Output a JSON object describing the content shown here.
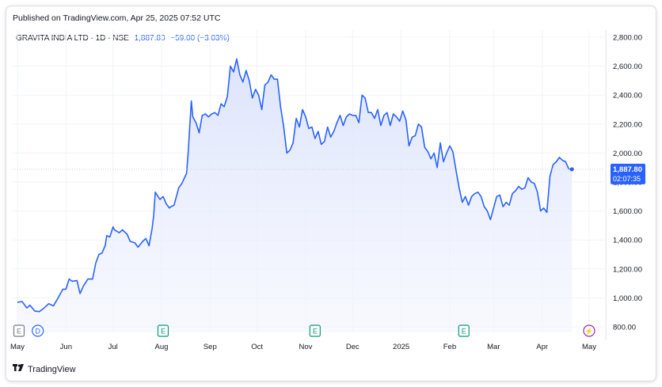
{
  "header": {
    "published": "Published on TradingView.com, Apr 25, 2025 07:52 UTC",
    "symbol": "GRAVITA INDIA LTD · 1D · NSE",
    "last_price": "1,887.80",
    "change": "−59.00 (−3.03%)"
  },
  "last_price_label": {
    "price": "1,887.80",
    "countdown": "02:07:35"
  },
  "footer": {
    "brand": "TradingView",
    "logo_icon": "tradingview-logo-icon"
  },
  "colors": {
    "line": "#2962ff",
    "area_top": "#dfe6fd",
    "label_bg": "#2962ff",
    "grid": "#f0f3fa"
  },
  "event_markers": [
    {
      "letter": "E",
      "icon": "earnings-icon",
      "date": "2024-05-02",
      "color": "#787b86"
    },
    {
      "letter": "D",
      "icon": "dividend-icon",
      "date": "2024-05-14",
      "color": "#2962ff"
    },
    {
      "letter": "E",
      "icon": "earnings-icon",
      "date": "2024-08-02",
      "color": "#089981"
    },
    {
      "letter": "E",
      "icon": "earnings-icon",
      "date": "2024-11-07",
      "color": "#089981"
    },
    {
      "letter": "E",
      "icon": "earnings-icon",
      "date": "2025-02-10",
      "color": "#089981"
    },
    {
      "letter": "⚡",
      "icon": "lightning-icon",
      "date": "2025-05-01",
      "color": "#9c27b0"
    }
  ],
  "chart_data": {
    "type": "area",
    "x_axis": {
      "ticks": [
        "May",
        "Jun",
        "Jul",
        "Aug",
        "Sep",
        "Oct",
        "Nov",
        "Dec",
        "2025",
        "Feb",
        "Mar",
        "Apr",
        "May"
      ],
      "tick_dates": [
        "2024-05-01",
        "2024-06-01",
        "2024-07-01",
        "2024-08-01",
        "2024-09-01",
        "2024-10-01",
        "2024-11-01",
        "2024-12-01",
        "2025-01-01",
        "2025-02-01",
        "2025-03-01",
        "2025-04-01",
        "2025-05-01"
      ]
    },
    "y_axis": {
      "ticks": [
        "800.00",
        "1,000.00",
        "1,200.00",
        "1,400.00",
        "1,600.00",
        "1,800.00",
        "2,000.00",
        "2,200.00",
        "2,400.00",
        "2,600.00",
        "2,800.00"
      ],
      "range": [
        720,
        2900
      ]
    },
    "series": [
      {
        "points": [
          [
            "2024-05-01",
            970
          ],
          [
            "2024-05-04",
            975
          ],
          [
            "2024-05-07",
            930
          ],
          [
            "2024-05-09",
            950
          ],
          [
            "2024-05-12",
            910
          ],
          [
            "2024-05-15",
            905
          ],
          [
            "2024-05-18",
            930
          ],
          [
            "2024-05-21",
            960
          ],
          [
            "2024-05-24",
            945
          ],
          [
            "2024-05-27",
            1000
          ],
          [
            "2024-05-30",
            1060
          ],
          [
            "2024-06-01",
            1060
          ],
          [
            "2024-06-03",
            1130
          ],
          [
            "2024-06-05",
            1115
          ],
          [
            "2024-06-08",
            1120
          ],
          [
            "2024-06-10",
            1030
          ],
          [
            "2024-06-12",
            1080
          ],
          [
            "2024-06-15",
            1130
          ],
          [
            "2024-06-18",
            1130
          ],
          [
            "2024-06-20",
            1240
          ],
          [
            "2024-06-22",
            1300
          ],
          [
            "2024-06-24",
            1310
          ],
          [
            "2024-06-26",
            1360
          ],
          [
            "2024-06-27",
            1430
          ],
          [
            "2024-06-29",
            1420
          ],
          [
            "2024-07-01",
            1490
          ],
          [
            "2024-07-02",
            1470
          ],
          [
            "2024-07-05",
            1450
          ],
          [
            "2024-07-07",
            1470
          ],
          [
            "2024-07-10",
            1440
          ],
          [
            "2024-07-12",
            1390
          ],
          [
            "2024-07-15",
            1380
          ],
          [
            "2024-07-17",
            1350
          ],
          [
            "2024-07-20",
            1390
          ],
          [
            "2024-07-22",
            1410
          ],
          [
            "2024-07-24",
            1360
          ],
          [
            "2024-07-26",
            1480
          ],
          [
            "2024-07-27",
            1570
          ],
          [
            "2024-07-28",
            1730
          ],
          [
            "2024-07-31",
            1680
          ],
          [
            "2024-08-02",
            1700
          ],
          [
            "2024-08-04",
            1650
          ],
          [
            "2024-08-06",
            1620
          ],
          [
            "2024-08-07",
            1630
          ],
          [
            "2024-08-09",
            1640
          ],
          [
            "2024-08-12",
            1760
          ],
          [
            "2024-08-14",
            1790
          ],
          [
            "2024-08-17",
            1860
          ],
          [
            "2024-08-18",
            2000
          ],
          [
            "2024-08-20",
            2360
          ],
          [
            "2024-08-21",
            2250
          ],
          [
            "2024-08-23",
            2210
          ],
          [
            "2024-08-25",
            2140
          ],
          [
            "2024-08-27",
            2260
          ],
          [
            "2024-08-29",
            2270
          ],
          [
            "2024-08-31",
            2250
          ],
          [
            "2024-09-02",
            2270
          ],
          [
            "2024-09-04",
            2280
          ],
          [
            "2024-09-06",
            2260
          ],
          [
            "2024-09-08",
            2340
          ],
          [
            "2024-09-10",
            2320
          ],
          [
            "2024-09-12",
            2390
          ],
          [
            "2024-09-14",
            2600
          ],
          [
            "2024-09-16",
            2560
          ],
          [
            "2024-09-18",
            2650
          ],
          [
            "2024-09-20",
            2540
          ],
          [
            "2024-09-22",
            2490
          ],
          [
            "2024-09-24",
            2570
          ],
          [
            "2024-09-26",
            2500
          ],
          [
            "2024-09-28",
            2380
          ],
          [
            "2024-09-30",
            2440
          ],
          [
            "2024-10-02",
            2400
          ],
          [
            "2024-10-04",
            2300
          ],
          [
            "2024-10-06",
            2470
          ],
          [
            "2024-10-08",
            2490
          ],
          [
            "2024-10-10",
            2540
          ],
          [
            "2024-10-12",
            2510
          ],
          [
            "2024-10-14",
            2510
          ],
          [
            "2024-10-16",
            2320
          ],
          [
            "2024-10-18",
            2180
          ],
          [
            "2024-10-20",
            2000
          ],
          [
            "2024-10-22",
            2020
          ],
          [
            "2024-10-24",
            2070
          ],
          [
            "2024-10-26",
            2240
          ],
          [
            "2024-10-28",
            2180
          ],
          [
            "2024-10-30",
            2300
          ],
          [
            "2024-11-01",
            2250
          ],
          [
            "2024-11-03",
            2170
          ],
          [
            "2024-11-05",
            2180
          ],
          [
            "2024-11-07",
            2100
          ],
          [
            "2024-11-09",
            2150
          ],
          [
            "2024-11-11",
            2060
          ],
          [
            "2024-11-13",
            2080
          ],
          [
            "2024-11-15",
            2180
          ],
          [
            "2024-11-17",
            2110
          ],
          [
            "2024-11-19",
            2150
          ],
          [
            "2024-11-21",
            2210
          ],
          [
            "2024-11-23",
            2260
          ],
          [
            "2024-11-25",
            2190
          ],
          [
            "2024-11-27",
            2250
          ],
          [
            "2024-11-29",
            2270
          ],
          [
            "2024-12-01",
            2260
          ],
          [
            "2024-12-03",
            2260
          ],
          [
            "2024-12-05",
            2210
          ],
          [
            "2024-12-07",
            2400
          ],
          [
            "2024-12-09",
            2380
          ],
          [
            "2024-12-11",
            2280
          ],
          [
            "2024-12-13",
            2280
          ],
          [
            "2024-12-15",
            2240
          ],
          [
            "2024-12-17",
            2300
          ],
          [
            "2024-12-19",
            2190
          ],
          [
            "2024-12-21",
            2260
          ],
          [
            "2024-12-23",
            2280
          ],
          [
            "2024-12-25",
            2190
          ],
          [
            "2024-12-27",
            2270
          ],
          [
            "2024-12-29",
            2250
          ],
          [
            "2024-12-31",
            2220
          ],
          [
            "2025-01-02",
            2290
          ],
          [
            "2025-01-04",
            2230
          ],
          [
            "2025-01-06",
            2050
          ],
          [
            "2025-01-08",
            2110
          ],
          [
            "2025-01-10",
            2120
          ],
          [
            "2025-01-12",
            2200
          ],
          [
            "2025-01-14",
            2180
          ],
          [
            "2025-01-16",
            2040
          ],
          [
            "2025-01-18",
            2010
          ],
          [
            "2025-01-20",
            1960
          ],
          [
            "2025-01-22",
            2000
          ],
          [
            "2025-01-24",
            1900
          ],
          [
            "2025-01-26",
            2070
          ],
          [
            "2025-01-28",
            1940
          ],
          [
            "2025-01-30",
            2000
          ],
          [
            "2025-02-01",
            2050
          ],
          [
            "2025-02-03",
            2010
          ],
          [
            "2025-02-05",
            1880
          ],
          [
            "2025-02-07",
            1760
          ],
          [
            "2025-02-09",
            1660
          ],
          [
            "2025-02-11",
            1700
          ],
          [
            "2025-02-13",
            1640
          ],
          [
            "2025-02-15",
            1700
          ],
          [
            "2025-02-17",
            1720
          ],
          [
            "2025-02-19",
            1730
          ],
          [
            "2025-02-21",
            1700
          ],
          [
            "2025-02-23",
            1630
          ],
          [
            "2025-02-25",
            1600
          ],
          [
            "2025-02-27",
            1540
          ],
          [
            "2025-03-01",
            1620
          ],
          [
            "2025-03-03",
            1700
          ],
          [
            "2025-03-05",
            1710
          ],
          [
            "2025-03-07",
            1630
          ],
          [
            "2025-03-09",
            1660
          ],
          [
            "2025-03-11",
            1640
          ],
          [
            "2025-03-13",
            1720
          ],
          [
            "2025-03-15",
            1740
          ],
          [
            "2025-03-17",
            1770
          ],
          [
            "2025-03-19",
            1750
          ],
          [
            "2025-03-21",
            1760
          ],
          [
            "2025-03-23",
            1830
          ],
          [
            "2025-03-25",
            1800
          ],
          [
            "2025-03-27",
            1790
          ],
          [
            "2025-03-29",
            1730
          ],
          [
            "2025-03-31",
            1600
          ],
          [
            "2025-04-02",
            1620
          ],
          [
            "2025-04-04",
            1590
          ],
          [
            "2025-04-06",
            1840
          ],
          [
            "2025-04-08",
            1920
          ],
          [
            "2025-04-10",
            1940
          ],
          [
            "2025-04-12",
            1970
          ],
          [
            "2025-04-14",
            1950
          ],
          [
            "2025-04-16",
            1940
          ],
          [
            "2025-04-18",
            1890
          ],
          [
            "2025-04-20",
            1887.8
          ]
        ]
      }
    ],
    "grid": true,
    "legend": "none"
  }
}
